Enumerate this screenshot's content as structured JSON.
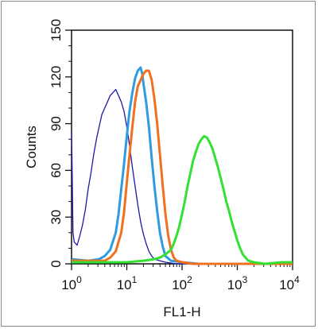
{
  "chart_data": {
    "type": "line",
    "title": "",
    "xlabel": "FL1-H",
    "ylabel": "Counts",
    "x_scale": "log",
    "xlim": [
      1,
      10000
    ],
    "ylim": [
      0,
      150
    ],
    "x_ticks": [
      {
        "value": 1,
        "base": "10",
        "exp": "0"
      },
      {
        "value": 10,
        "base": "10",
        "exp": "1"
      },
      {
        "value": 100,
        "base": "10",
        "exp": "2"
      },
      {
        "value": 1000,
        "base": "10",
        "exp": "3"
      },
      {
        "value": 10000,
        "base": "10",
        "exp": "4"
      }
    ],
    "y_ticks": [
      "0",
      "30",
      "60",
      "90",
      "120",
      "150"
    ],
    "grid": false,
    "series": [
      {
        "color": "#1a1aa8",
        "points": [
          [
            1.0,
            85
          ],
          [
            1.03,
            55
          ],
          [
            1.06,
            20
          ],
          [
            1.12,
            14
          ],
          [
            1.26,
            12
          ],
          [
            1.41,
            18
          ],
          [
            1.58,
            25
          ],
          [
            1.78,
            35
          ],
          [
            2.0,
            48
          ],
          [
            2.24,
            58
          ],
          [
            2.51,
            70
          ],
          [
            2.82,
            80
          ],
          [
            3.16,
            88
          ],
          [
            3.55,
            96
          ],
          [
            3.98,
            100
          ],
          [
            4.47,
            104
          ],
          [
            5.01,
            108
          ],
          [
            5.62,
            110
          ],
          [
            6.31,
            112
          ],
          [
            7.08,
            108
          ],
          [
            7.94,
            104
          ],
          [
            8.91,
            98
          ],
          [
            10.0,
            88
          ],
          [
            11.2,
            76
          ],
          [
            12.6,
            62
          ],
          [
            14.1,
            50
          ],
          [
            15.8,
            38
          ],
          [
            17.8,
            27
          ],
          [
            20.0,
            19
          ],
          [
            22.4,
            13
          ],
          [
            25.1,
            8
          ],
          [
            28.2,
            5
          ],
          [
            31.6,
            3
          ],
          [
            39.8,
            2
          ],
          [
            50.1,
            1
          ],
          [
            79.4,
            0
          ],
          [
            10000,
            0
          ]
        ]
      },
      {
        "color": "#2f9be0",
        "points": [
          [
            1.0,
            3
          ],
          [
            2.0,
            2
          ],
          [
            3.16,
            3
          ],
          [
            3.98,
            5
          ],
          [
            5.01,
            9
          ],
          [
            6.31,
            20
          ],
          [
            7.08,
            32
          ],
          [
            7.94,
            48
          ],
          [
            8.91,
            64
          ],
          [
            10.0,
            82
          ],
          [
            11.2,
            98
          ],
          [
            12.6,
            110
          ],
          [
            14.1,
            119
          ],
          [
            15.8,
            124
          ],
          [
            17.8,
            126
          ],
          [
            19.0,
            122
          ],
          [
            20.0,
            116
          ],
          [
            22.4,
            104
          ],
          [
            25.1,
            88
          ],
          [
            28.2,
            68
          ],
          [
            31.6,
            50
          ],
          [
            35.5,
            34
          ],
          [
            39.8,
            20
          ],
          [
            44.7,
            11
          ],
          [
            50.1,
            5
          ],
          [
            63.1,
            2
          ],
          [
            100,
            1
          ],
          [
            200,
            0
          ],
          [
            10000,
            0
          ]
        ]
      },
      {
        "color": "#f07020",
        "points": [
          [
            1.0,
            2
          ],
          [
            3.98,
            2
          ],
          [
            5.01,
            4
          ],
          [
            6.31,
            8
          ],
          [
            7.94,
            20
          ],
          [
            8.91,
            33
          ],
          [
            10.0,
            52
          ],
          [
            11.2,
            70
          ],
          [
            12.6,
            88
          ],
          [
            14.1,
            104
          ],
          [
            15.8,
            114
          ],
          [
            17.8,
            118
          ],
          [
            20.0,
            122
          ],
          [
            22.4,
            124
          ],
          [
            25.1,
            124
          ],
          [
            28.2,
            118
          ],
          [
            31.6,
            106
          ],
          [
            35.5,
            90
          ],
          [
            39.8,
            70
          ],
          [
            44.7,
            50
          ],
          [
            50.1,
            32
          ],
          [
            56.2,
            18
          ],
          [
            63.1,
            9
          ],
          [
            70.8,
            4
          ],
          [
            79.4,
            2
          ],
          [
            100,
            1
          ],
          [
            158,
            0
          ],
          [
            10000,
            0
          ]
        ]
      },
      {
        "color": "#33e033",
        "points": [
          [
            1.0,
            1
          ],
          [
            10.0,
            1
          ],
          [
            20.0,
            2
          ],
          [
            31.6,
            3
          ],
          [
            39.8,
            4
          ],
          [
            50.1,
            6
          ],
          [
            63.1,
            9
          ],
          [
            70.8,
            13
          ],
          [
            79.4,
            18
          ],
          [
            89.1,
            24
          ],
          [
            100,
            32
          ],
          [
            112,
            40
          ],
          [
            126,
            50
          ],
          [
            141,
            58
          ],
          [
            158,
            66
          ],
          [
            178,
            72
          ],
          [
            200,
            77
          ],
          [
            224,
            80
          ],
          [
            251,
            82
          ],
          [
            282,
            81
          ],
          [
            316,
            78
          ],
          [
            355,
            74
          ],
          [
            398,
            68
          ],
          [
            447,
            62
          ],
          [
            501,
            55
          ],
          [
            562,
            48
          ],
          [
            631,
            40
          ],
          [
            708,
            34
          ],
          [
            794,
            27
          ],
          [
            891,
            21
          ],
          [
            1000,
            15
          ],
          [
            1122,
            10
          ],
          [
            1259,
            6
          ],
          [
            1413,
            4
          ],
          [
            1585,
            2
          ],
          [
            2000,
            1
          ],
          [
            3162,
            0
          ],
          [
            6310,
            1
          ],
          [
            10000,
            1
          ]
        ]
      }
    ]
  }
}
